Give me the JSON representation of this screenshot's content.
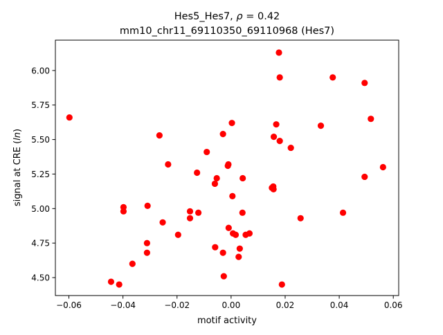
{
  "chart_data": {
    "type": "scatter",
    "title_main": "Hes5_Hes7, ",
    "title_rho_symbol": "ρ",
    "title_rho_value": " = 0.42",
    "subtitle": "mm10_chr11_69110350_69110968 (Hes7)",
    "xlabel": "motif activity",
    "ylabel_prefix": "signal at CRE (",
    "ylabel_italic": "ln",
    "ylabel_suffix": ")",
    "xlim": [
      -0.065,
      0.062
    ],
    "ylim": [
      4.37,
      6.22
    ],
    "x_ticks": [
      -0.06,
      -0.04,
      -0.02,
      0.0,
      0.02,
      0.04,
      0.06
    ],
    "x_tick_labels": [
      "−0.06",
      "−0.04",
      "−0.02",
      "0.00",
      "0.02",
      "0.04",
      "0.06"
    ],
    "y_ticks": [
      4.5,
      4.75,
      5.0,
      5.25,
      5.5,
      5.75,
      6.0
    ],
    "y_tick_labels": [
      "4.50",
      "4.75",
      "5.00",
      "5.25",
      "5.50",
      "5.75",
      "6.00"
    ],
    "grid": false,
    "marker_color": "#ff0000",
    "points": [
      {
        "x": -0.0598,
        "y": 5.66
      },
      {
        "x": -0.0444,
        "y": 4.47
      },
      {
        "x": -0.0414,
        "y": 4.45
      },
      {
        "x": -0.0398,
        "y": 5.01
      },
      {
        "x": -0.0398,
        "y": 4.98
      },
      {
        "x": -0.0365,
        "y": 4.6
      },
      {
        "x": -0.0309,
        "y": 5.02
      },
      {
        "x": -0.0311,
        "y": 4.75
      },
      {
        "x": -0.0311,
        "y": 4.68
      },
      {
        "x": -0.0265,
        "y": 5.53
      },
      {
        "x": -0.0253,
        "y": 4.9
      },
      {
        "x": -0.0233,
        "y": 5.32
      },
      {
        "x": -0.0196,
        "y": 4.81
      },
      {
        "x": -0.0152,
        "y": 4.98
      },
      {
        "x": -0.0152,
        "y": 4.93
      },
      {
        "x": -0.0126,
        "y": 5.26
      },
      {
        "x": -0.0121,
        "y": 4.97
      },
      {
        "x": -0.009,
        "y": 5.41
      },
      {
        "x": -0.006,
        "y": 5.18
      },
      {
        "x": -0.0053,
        "y": 5.22
      },
      {
        "x": -0.0059,
        "y": 4.72
      },
      {
        "x": -0.003,
        "y": 5.54
      },
      {
        "x": -0.003,
        "y": 4.68
      },
      {
        "x": -0.0027,
        "y": 4.51
      },
      {
        "x": -0.001,
        "y": 5.32
      },
      {
        "x": -0.0012,
        "y": 5.31
      },
      {
        "x": -0.0009,
        "y": 4.86
      },
      {
        "x": 0.0003,
        "y": 5.62
      },
      {
        "x": 0.0005,
        "y": 5.09
      },
      {
        "x": 0.0007,
        "y": 4.82
      },
      {
        "x": 0.0017,
        "y": 4.81
      },
      {
        "x": 0.0028,
        "y": 4.65
      },
      {
        "x": 0.0032,
        "y": 4.71
      },
      {
        "x": 0.0043,
        "y": 5.22
      },
      {
        "x": 0.0042,
        "y": 4.97
      },
      {
        "x": 0.0054,
        "y": 4.81
      },
      {
        "x": 0.0068,
        "y": 4.82
      },
      {
        "x": 0.0151,
        "y": 5.15
      },
      {
        "x": 0.0156,
        "y": 5.16
      },
      {
        "x": 0.0157,
        "y": 5.14
      },
      {
        "x": 0.0158,
        "y": 5.52
      },
      {
        "x": 0.0167,
        "y": 5.61
      },
      {
        "x": 0.0177,
        "y": 6.13
      },
      {
        "x": 0.018,
        "y": 5.95
      },
      {
        "x": 0.018,
        "y": 5.49
      },
      {
        "x": 0.0188,
        "y": 4.45
      },
      {
        "x": 0.0221,
        "y": 5.44
      },
      {
        "x": 0.0257,
        "y": 4.93
      },
      {
        "x": 0.0332,
        "y": 5.6
      },
      {
        "x": 0.0376,
        "y": 5.95
      },
      {
        "x": 0.0414,
        "y": 4.97
      },
      {
        "x": 0.0494,
        "y": 5.91
      },
      {
        "x": 0.0494,
        "y": 5.23
      },
      {
        "x": 0.0517,
        "y": 5.65
      },
      {
        "x": 0.0562,
        "y": 5.3
      }
    ]
  }
}
